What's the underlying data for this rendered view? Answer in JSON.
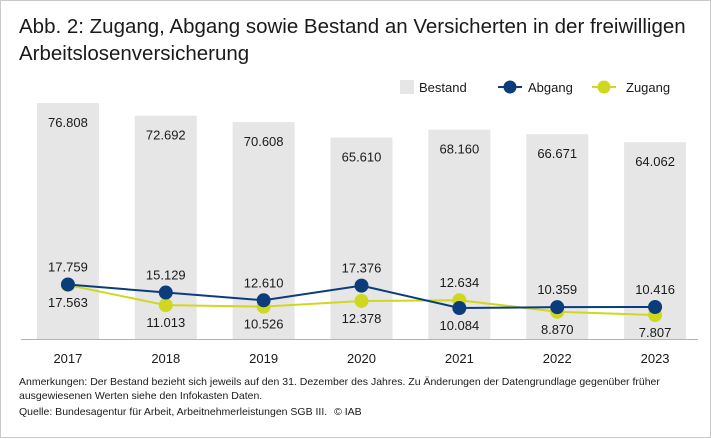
{
  "chart_data": {
    "type": "bar",
    "title": "Abb. 2: Zugang, Abgang sowie Bestand an Versicherten in der freiwilligen Arbeitslosenversicherung",
    "categories": [
      "2017",
      "2018",
      "2019",
      "2020",
      "2021",
      "2022",
      "2023"
    ],
    "series": [
      {
        "name": "Bestand",
        "kind": "bar",
        "color": "#e6e6e6",
        "values": [
          76808,
          72692,
          70608,
          65610,
          68160,
          66671,
          64062
        ],
        "labels": [
          "76.808",
          "72.692",
          "70.608",
          "65.610",
          "68.160",
          "66.671",
          "64.062"
        ]
      },
      {
        "name": "Abgang",
        "kind": "line",
        "color": "#0c3d7a",
        "values": [
          17759,
          15129,
          12610,
          17376,
          10084,
          10359,
          10416
        ],
        "labels": [
          "17.759",
          "15.129",
          "12.610",
          "17.376",
          "10.084",
          "10.359",
          "10.416"
        ]
      },
      {
        "name": "Zugang",
        "kind": "line",
        "color": "#cfd81f",
        "values": [
          17563,
          11013,
          10526,
          12378,
          12634,
          8870,
          7807
        ],
        "labels": [
          "17.563",
          "11.013",
          "10.526",
          "12.378",
          "12.634",
          "8.870",
          "7.807"
        ]
      }
    ],
    "ylim": [
      0,
      84000
    ],
    "xlabel": "",
    "ylabel": "",
    "grid": false,
    "legend": "top-right"
  },
  "notes": {
    "line1": "Anmerkungen: Der Bestand bezieht sich jeweils auf den 31. Dezember des Jahres. Zu Änderungen der Datengrundlage gegenüber früher",
    "line2": "ausgewiesenen Werten siehe den Infokasten Daten."
  },
  "source": {
    "text": "Quelle: Bundesagentur für Arbeit, Arbeitnehmerleistungen SGB III.",
    "copyright": "© IAB"
  }
}
